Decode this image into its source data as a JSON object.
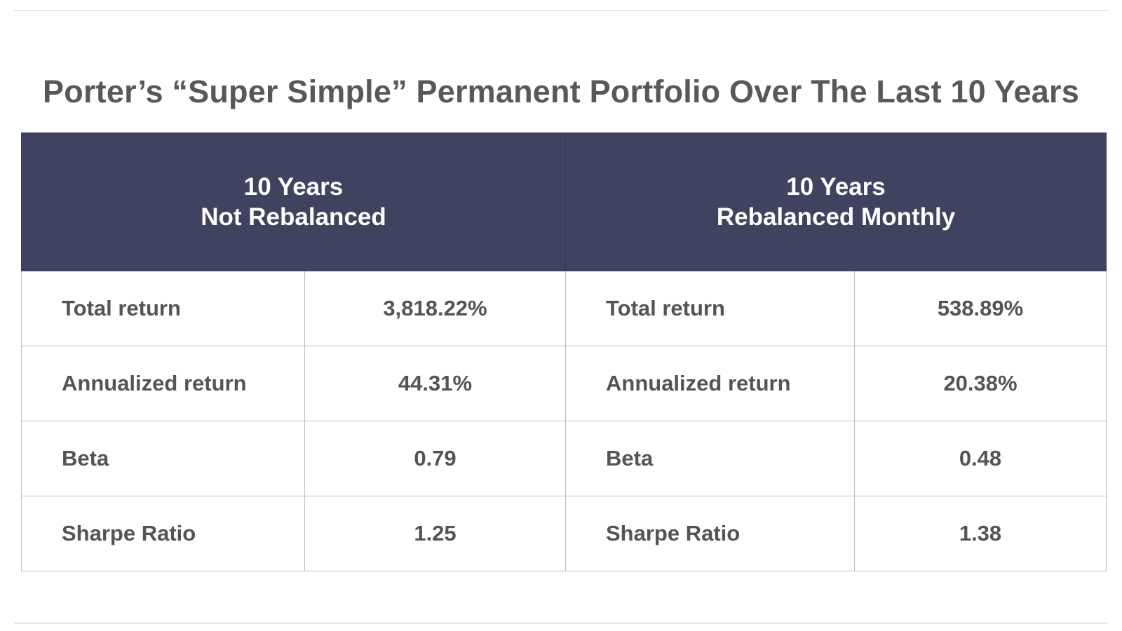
{
  "chart_data": {
    "type": "table",
    "title": "Porter’s “Super Simple” Permanent Portfolio Over The Last 10 Years",
    "groups": [
      {
        "header_line1": "10 Years",
        "header_line2": "Not Rebalanced",
        "rows": [
          {
            "metric": "Total return",
            "value": "3,818.22%"
          },
          {
            "metric": "Annualized return",
            "value": "44.31%"
          },
          {
            "metric": "Beta",
            "value": "0.79"
          },
          {
            "metric": "Sharpe Ratio",
            "value": "1.25"
          }
        ]
      },
      {
        "header_line1": "10 Years",
        "header_line2": "Rebalanced Monthly",
        "rows": [
          {
            "metric": "Total return",
            "value": "538.89%"
          },
          {
            "metric": "Annualized return",
            "value": "20.38%"
          },
          {
            "metric": "Beta",
            "value": "0.48"
          },
          {
            "metric": "Sharpe Ratio",
            "value": "1.38"
          }
        ]
      }
    ]
  },
  "colors": {
    "header_bg": "#404360",
    "header_text": "#ffffff",
    "title_text": "#585858",
    "cell_text": "#545454",
    "grid": "#bdbdbd"
  }
}
